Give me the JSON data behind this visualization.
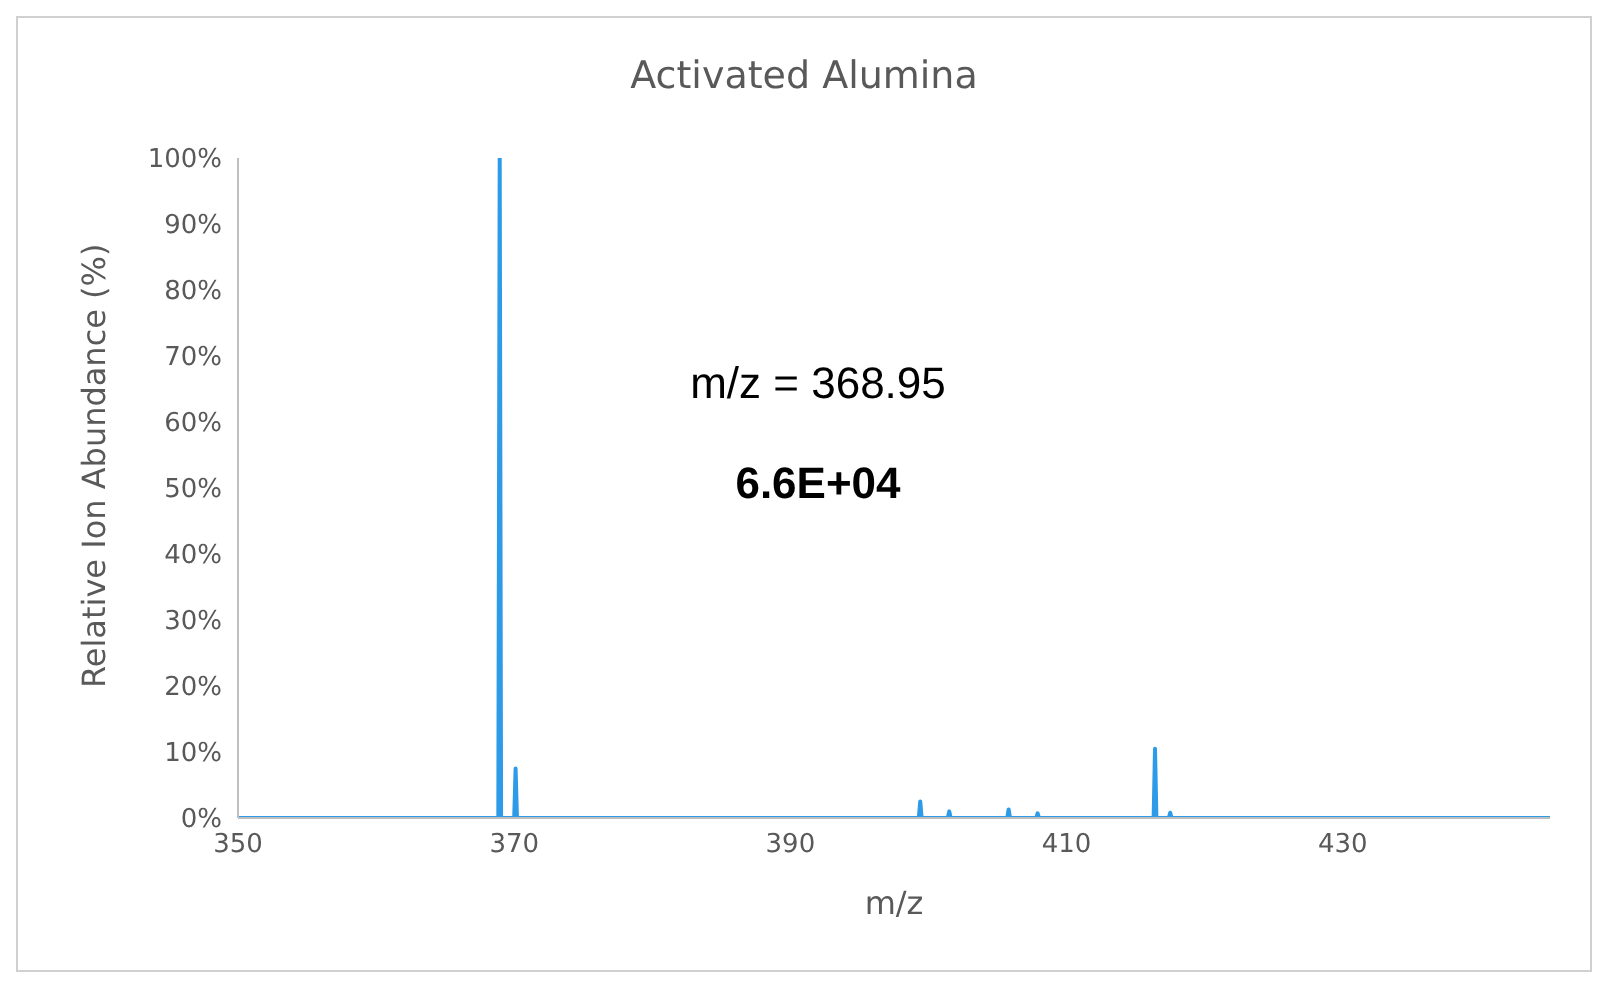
{
  "chart_data": {
    "type": "line",
    "title": "Activated Alumina",
    "xlabel": "m/z",
    "ylabel": "Relative Ion Abundance (%)",
    "annotations": [
      "m/z = 368.95",
      "6.6E+04"
    ],
    "x": [
      350,
      368.85,
      368.95,
      369.05,
      370.0,
      370.1,
      370.2,
      399.3,
      399.4,
      399.5,
      401.4,
      401.5,
      401.6,
      405.7,
      405.8,
      405.9,
      407.8,
      407.9,
      408.0,
      416.3,
      416.4,
      416.5,
      417.4,
      417.5,
      417.6,
      445
    ],
    "series": [
      {
        "color": "#2e9be8",
        "values": [
          0,
          0,
          100,
          0,
          0,
          7.5,
          0,
          0,
          2.5,
          0,
          0,
          1,
          0,
          0,
          1.3,
          0,
          0,
          0.7,
          0,
          0,
          10.5,
          0,
          0,
          0.8,
          0,
          0
        ]
      }
    ],
    "xlim": [
      350,
      445
    ],
    "xticks": [
      350,
      370,
      390,
      410,
      430
    ],
    "ylim": [
      0,
      100
    ],
    "yticks": [
      {
        "value": 0,
        "label": "0%"
      },
      {
        "value": 10,
        "label": "10%"
      },
      {
        "value": 20,
        "label": "20%"
      },
      {
        "value": 30,
        "label": "30%"
      },
      {
        "value": 40,
        "label": "40%"
      },
      {
        "value": 50,
        "label": "50%"
      },
      {
        "value": 60,
        "label": "60%"
      },
      {
        "value": 70,
        "label": "70%"
      },
      {
        "value": 80,
        "label": "80%"
      },
      {
        "value": 90,
        "label": "90%"
      },
      {
        "value": 100,
        "label": "100%"
      }
    ],
    "grid": false,
    "legend": false,
    "marker": "none",
    "line_style": "solid"
  }
}
